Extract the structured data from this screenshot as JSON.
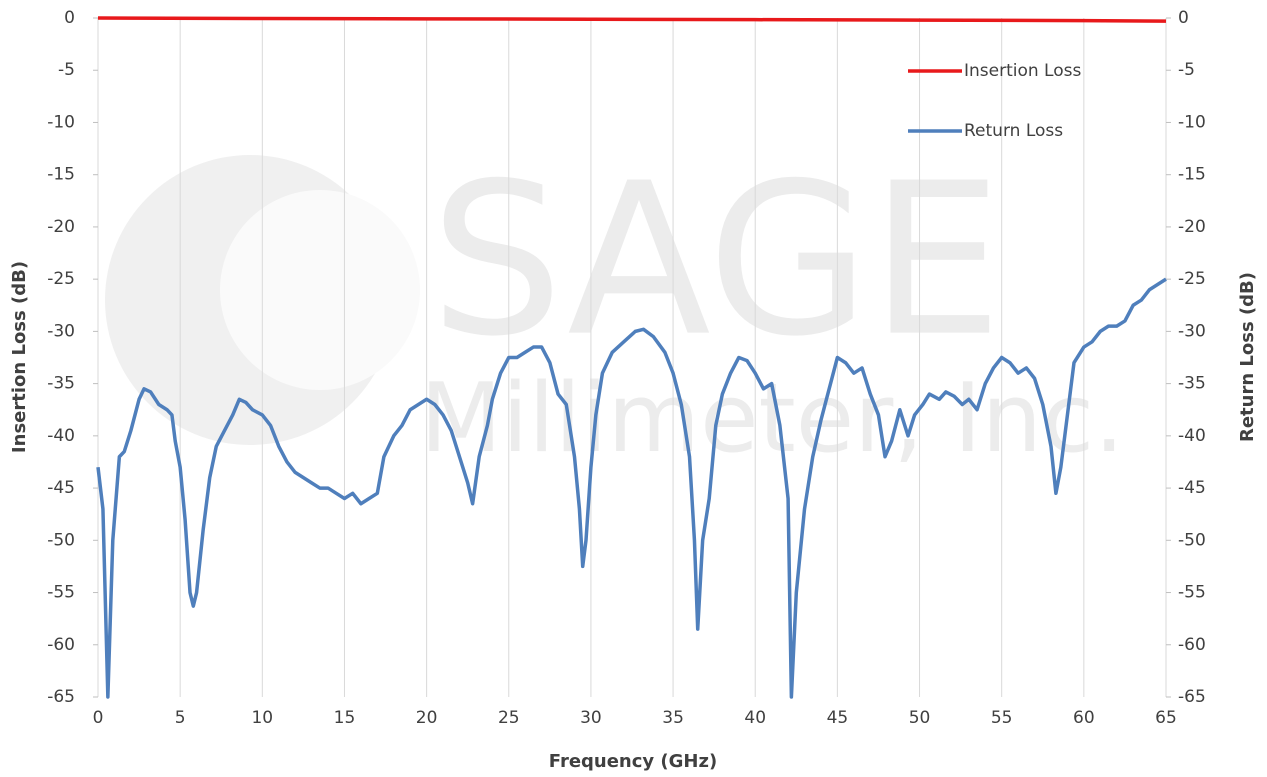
{
  "chart_data": {
    "type": "line",
    "x_label": "Frequency (GHz)",
    "y_label": "Insertion Loss (dB)",
    "y2_label": "Return Loss (dB)",
    "watermark": [
      "SAGE",
      "Millimeter, Inc."
    ],
    "xlim": [
      0,
      65
    ],
    "xticks": [
      0,
      5,
      10,
      15,
      20,
      25,
      30,
      35,
      40,
      45,
      50,
      55,
      60,
      65
    ],
    "ylim": [
      -65,
      0
    ],
    "yticks": [
      0,
      -5,
      -10,
      -15,
      -20,
      -25,
      -30,
      -35,
      -40,
      -45,
      -50,
      -55,
      -60,
      -65
    ],
    "y2lim": [
      -65,
      0
    ],
    "y2ticks": [
      0,
      -5,
      -10,
      -15,
      -20,
      -25,
      -30,
      -35,
      -40,
      -45,
      -50,
      -55,
      -60,
      -65
    ],
    "grid": "x",
    "legend": "upper right",
    "series": [
      {
        "name": "Insertion Loss",
        "color": "#e8191b",
        "axis": "y",
        "x": [
          0,
          10,
          20,
          30,
          40,
          50,
          60,
          65
        ],
        "values": [
          0,
          -0.05,
          -0.08,
          -0.12,
          -0.16,
          -0.2,
          -0.25,
          -0.3
        ]
      },
      {
        "name": "Return Loss",
        "color": "#4f7fbc",
        "axis": "y2",
        "x": [
          0,
          0.3,
          0.6,
          0.9,
          1.3,
          1.6,
          2,
          2.5,
          2.8,
          3.2,
          3.7,
          4.2,
          4.5,
          4.7,
          5,
          5.3,
          5.6,
          5.8,
          6,
          6.4,
          6.8,
          7.2,
          7.7,
          8.2,
          8.6,
          9,
          9.4,
          10,
          10.5,
          11,
          11.5,
          12,
          12.5,
          13,
          13.5,
          14,
          14.5,
          15,
          15.5,
          16,
          16.5,
          17,
          17.4,
          18,
          18.5,
          19,
          19.5,
          20,
          20.5,
          21,
          21.5,
          22,
          22.5,
          22.8,
          23.2,
          23.7,
          24,
          24.5,
          25,
          25.5,
          26,
          26.5,
          27,
          27.5,
          28,
          28.5,
          29,
          29.3,
          29.5,
          29.7,
          30,
          30.3,
          30.7,
          31.3,
          32,
          32.7,
          33.2,
          33.8,
          34.5,
          35,
          35.5,
          36,
          36.3,
          36.5,
          36.8,
          37.2,
          37.6,
          38,
          38.5,
          39,
          39.5,
          40,
          40.5,
          41,
          41.5,
          42,
          42.2,
          42.5,
          43,
          43.5,
          44,
          44.5,
          45,
          45.5,
          46,
          46.5,
          47,
          47.5,
          47.9,
          48.3,
          48.8,
          49.3,
          49.7,
          50.2,
          50.6,
          51.2,
          51.6,
          52.1,
          52.6,
          53,
          53.5,
          54,
          54.5,
          55,
          55.5,
          56,
          56.5,
          57,
          57.5,
          58,
          58.3,
          58.6,
          59,
          59.4,
          60,
          60.5,
          61,
          61.5,
          62,
          62.5,
          63,
          63.5,
          64,
          64.5,
          65
        ],
        "values": [
          -43,
          -47,
          -65,
          -50,
          -42,
          -41.5,
          -39.5,
          -36.5,
          -35.5,
          -35.8,
          -37,
          -37.5,
          -38,
          -40.5,
          -43,
          -48,
          -55,
          -56.3,
          -55,
          -49,
          -44,
          -41,
          -39.5,
          -38,
          -36.5,
          -36.8,
          -37.5,
          -38,
          -39,
          -41,
          -42.5,
          -43.5,
          -44,
          -44.5,
          -45,
          -45,
          -45.5,
          -46,
          -45.5,
          -46.5,
          -46,
          -45.5,
          -42,
          -40,
          -39,
          -37.5,
          -37,
          -36.5,
          -37,
          -38,
          -39.5,
          -42,
          -44.5,
          -46.5,
          -42,
          -39,
          -36.5,
          -34,
          -32.5,
          -32.5,
          -32,
          -31.5,
          -31.5,
          -33,
          -36,
          -37,
          -42,
          -47,
          -52.5,
          -50,
          -43,
          -38,
          -34,
          -32,
          -31,
          -30,
          -29.8,
          -30.5,
          -32,
          -34,
          -37,
          -42,
          -50,
          -58.5,
          -50,
          -46,
          -39,
          -36,
          -34,
          -32.5,
          -32.8,
          -34,
          -35.5,
          -35,
          -39,
          -46,
          -65,
          -55,
          -47,
          -42,
          -38.5,
          -35.5,
          -32.5,
          -33,
          -34,
          -33.5,
          -36,
          -38,
          -42,
          -40.5,
          -37.5,
          -40,
          -38,
          -37,
          -36,
          -36.5,
          -35.8,
          -36.2,
          -37,
          -36.5,
          -37.5,
          -35,
          -33.5,
          -32.5,
          -33,
          -34,
          -33.5,
          -34.5,
          -37,
          -41,
          -45.5,
          -43,
          -38,
          -33,
          -31.5,
          -31,
          -30,
          -29.5,
          -29.5,
          -29,
          -27.5,
          -27,
          -26,
          -25.5,
          -25
        ]
      }
    ]
  }
}
